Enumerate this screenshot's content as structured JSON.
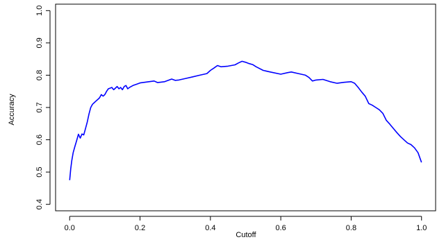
{
  "chart_data": {
    "type": "line",
    "title": "",
    "xlabel": "Cutoff",
    "ylabel": "Accuracy",
    "xlim": [
      -0.04,
      1.04
    ],
    "ylim": [
      0.38,
      1.02
    ],
    "x_ticks": [
      0.0,
      0.2,
      0.4,
      0.6,
      0.8,
      1.0
    ],
    "x_tick_labels": [
      "0.0",
      "0.2",
      "0.4",
      "0.6",
      "0.8",
      "1.0"
    ],
    "y_ticks": [
      0.4,
      0.5,
      0.6,
      0.7,
      0.8,
      0.9,
      1.0
    ],
    "y_tick_labels": [
      "0.4",
      "0.5",
      "0.6",
      "0.7",
      "0.8",
      "0.9",
      "1.0"
    ],
    "grid": false,
    "legend": "none",
    "line_color": "#0000ff",
    "series": [
      {
        "x": [
          0.0,
          0.003,
          0.006,
          0.01,
          0.015,
          0.02,
          0.025,
          0.03,
          0.035,
          0.04,
          0.045,
          0.05,
          0.055,
          0.06,
          0.065,
          0.07,
          0.075,
          0.08,
          0.085,
          0.09,
          0.095,
          0.1,
          0.105,
          0.11,
          0.115,
          0.12,
          0.125,
          0.13,
          0.135,
          0.14,
          0.145,
          0.15,
          0.155,
          0.16,
          0.165,
          0.17,
          0.18,
          0.19,
          0.2,
          0.22,
          0.24,
          0.25,
          0.27,
          0.29,
          0.3,
          0.31,
          0.33,
          0.35,
          0.37,
          0.39,
          0.4,
          0.41,
          0.42,
          0.43,
          0.45,
          0.47,
          0.48,
          0.49,
          0.5,
          0.51,
          0.52,
          0.53,
          0.55,
          0.57,
          0.6,
          0.62,
          0.63,
          0.65,
          0.67,
          0.68,
          0.69,
          0.7,
          0.72,
          0.74,
          0.76,
          0.78,
          0.8,
          0.81,
          0.82,
          0.83,
          0.84,
          0.85,
          0.86,
          0.87,
          0.88,
          0.89,
          0.9,
          0.91,
          0.92,
          0.93,
          0.94,
          0.95,
          0.96,
          0.97,
          0.98,
          0.99,
          1.0
        ],
        "values": [
          0.475,
          0.51,
          0.535,
          0.56,
          0.58,
          0.598,
          0.617,
          0.605,
          0.618,
          0.615,
          0.635,
          0.655,
          0.68,
          0.7,
          0.71,
          0.715,
          0.72,
          0.725,
          0.73,
          0.74,
          0.735,
          0.74,
          0.75,
          0.758,
          0.76,
          0.762,
          0.755,
          0.76,
          0.765,
          0.758,
          0.762,
          0.755,
          0.765,
          0.768,
          0.758,
          0.762,
          0.768,
          0.772,
          0.776,
          0.779,
          0.782,
          0.777,
          0.78,
          0.788,
          0.784,
          0.785,
          0.79,
          0.795,
          0.8,
          0.805,
          0.815,
          0.822,
          0.83,
          0.826,
          0.828,
          0.832,
          0.838,
          0.843,
          0.84,
          0.836,
          0.833,
          0.826,
          0.815,
          0.81,
          0.803,
          0.808,
          0.81,
          0.805,
          0.8,
          0.793,
          0.782,
          0.785,
          0.787,
          0.78,
          0.775,
          0.778,
          0.78,
          0.775,
          0.762,
          0.748,
          0.735,
          0.712,
          0.707,
          0.7,
          0.693,
          0.682,
          0.66,
          0.648,
          0.635,
          0.622,
          0.61,
          0.6,
          0.59,
          0.585,
          0.575,
          0.56,
          0.53
        ]
      }
    ]
  }
}
